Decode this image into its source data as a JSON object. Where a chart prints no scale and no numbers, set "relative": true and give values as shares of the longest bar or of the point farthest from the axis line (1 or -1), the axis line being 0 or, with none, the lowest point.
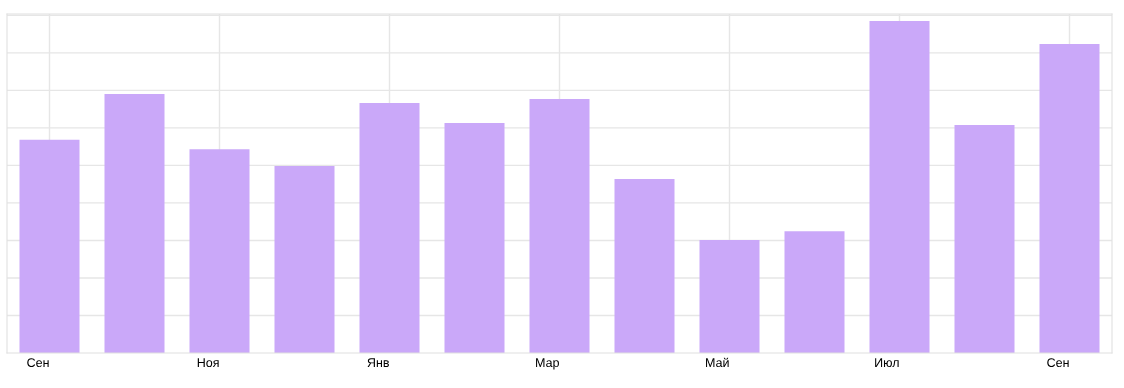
{
  "chart_data": {
    "type": "bar",
    "relative": true,
    "grid": true,
    "legend": false,
    "color": "#caa8f9",
    "categories": [
      "Сен",
      null,
      "Ноя",
      null,
      "Янв",
      null,
      "Мар",
      null,
      "Май",
      null,
      "Июл",
      null,
      "Сен"
    ],
    "values": [
      0.642,
      0.78,
      0.614,
      0.563,
      0.753,
      0.693,
      0.765,
      0.524,
      0.34,
      0.367,
      1,
      0.687,
      0.931
    ]
  }
}
